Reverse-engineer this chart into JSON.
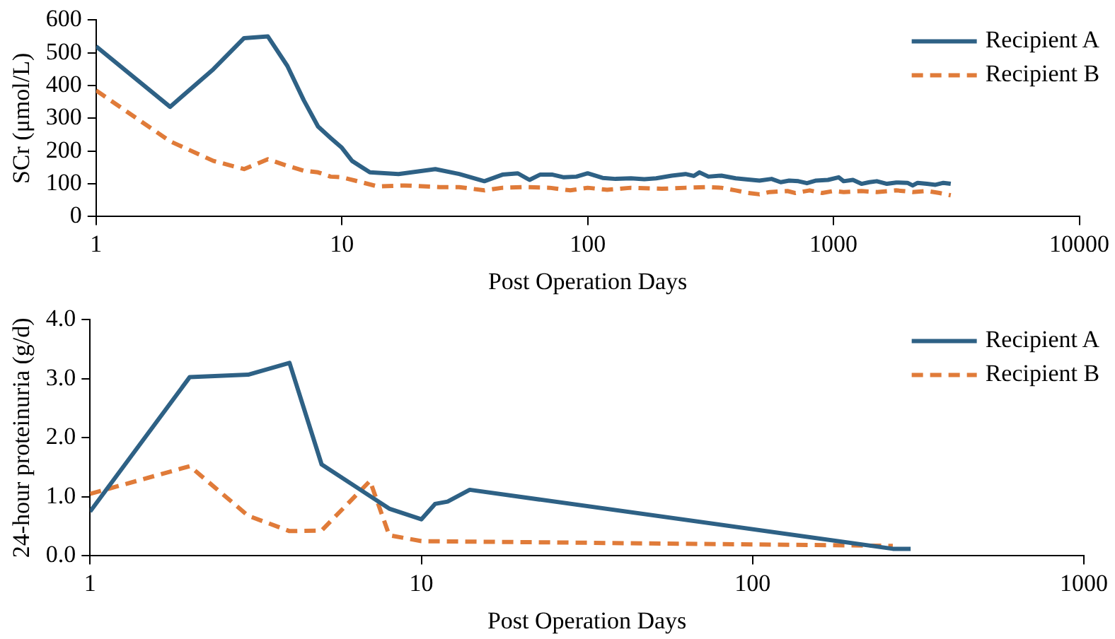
{
  "chart_data": [
    {
      "type": "line",
      "xlabel": "Post Operation Days",
      "ylabel": "SCr (μmol/L)",
      "log": "x",
      "grid": false,
      "legend": "top right",
      "marker": "none",
      "xlim": [
        1,
        10000
      ],
      "xticks": [
        1,
        10,
        100,
        1000,
        10000
      ],
      "ylim": [
        0,
        600
      ],
      "yticks": [
        0,
        100,
        200,
        300,
        400,
        500,
        600
      ],
      "series": [
        {
          "name": "Recipient A",
          "color": "#2e6185",
          "line_style": "solid",
          "x": [
            1,
            2,
            3,
            4,
            5,
            6,
            7,
            8,
            9,
            10,
            11,
            13,
            17,
            24,
            30,
            38,
            45,
            52,
            58,
            64,
            72,
            80,
            90,
            100,
            115,
            130,
            150,
            170,
            190,
            220,
            250,
            270,
            285,
            310,
            350,
            400,
            450,
            500,
            560,
            610,
            660,
            720,
            780,
            850,
            950,
            1050,
            1100,
            1200,
            1300,
            1400,
            1500,
            1650,
            1800,
            2000,
            2100,
            2200,
            2400,
            2600,
            2800,
            3000
          ],
          "values": [
            520,
            335,
            450,
            545,
            550,
            460,
            355,
            275,
            240,
            210,
            170,
            135,
            130,
            145,
            130,
            108,
            128,
            132,
            112,
            128,
            128,
            120,
            122,
            132,
            118,
            115,
            117,
            114,
            117,
            125,
            130,
            124,
            135,
            122,
            125,
            117,
            113,
            110,
            115,
            105,
            110,
            108,
            102,
            110,
            112,
            120,
            108,
            112,
            100,
            105,
            108,
            100,
            104,
            103,
            95,
            103,
            100,
            97,
            103,
            100
          ]
        },
        {
          "name": "Recipient B",
          "color": "#e07b39",
          "line_style": "dashed",
          "x": [
            1,
            2,
            3,
            4,
            5,
            6,
            7,
            8,
            9,
            10,
            12,
            14,
            18,
            25,
            30,
            38,
            45,
            55,
            70,
            85,
            100,
            120,
            150,
            200,
            250,
            300,
            350,
            400,
            450,
            500,
            550,
            650,
            700,
            800,
            900,
            1000,
            1100,
            1300,
            1500,
            1800,
            2100,
            2400,
            2700,
            3000
          ],
          "values": [
            385,
            230,
            170,
            145,
            175,
            155,
            140,
            135,
            122,
            120,
            105,
            92,
            95,
            90,
            90,
            80,
            88,
            90,
            88,
            80,
            88,
            82,
            88,
            85,
            88,
            90,
            88,
            80,
            72,
            68,
            75,
            78,
            72,
            80,
            72,
            78,
            75,
            78,
            75,
            80,
            75,
            78,
            72,
            65
          ]
        }
      ]
    },
    {
      "type": "line",
      "xlabel": "Post Operation Days",
      "ylabel": "24-hour proteinuria (g/d)",
      "log": "x",
      "grid": false,
      "legend": "top right",
      "marker": "none",
      "xlim": [
        1,
        1000
      ],
      "xticks": [
        1,
        10,
        100,
        1000
      ],
      "ylim": [
        0,
        4
      ],
      "yticks": [
        {
          "value": 0,
          "label": "0.0"
        },
        {
          "value": 1,
          "label": "1.0"
        },
        {
          "value": 2,
          "label": "2.0"
        },
        {
          "value": 3,
          "label": "3.0"
        },
        {
          "value": 4,
          "label": "4.0"
        }
      ],
      "series": [
        {
          "name": "Recipient A",
          "color": "#2e6185",
          "line_style": "solid",
          "x": [
            1,
            2,
            3,
            4,
            5,
            8,
            10,
            11,
            12,
            14,
            265,
            300
          ],
          "values": [
            0.75,
            3.03,
            3.07,
            3.27,
            1.55,
            0.8,
            0.62,
            0.88,
            0.92,
            1.12,
            0.12,
            0.12
          ]
        },
        {
          "name": "Recipient B",
          "color": "#e07b39",
          "line_style": "dashed",
          "x": [
            1,
            2,
            3,
            4,
            5,
            7,
            8,
            10,
            265
          ],
          "values": [
            1.05,
            1.52,
            0.68,
            0.42,
            0.43,
            1.27,
            0.35,
            0.25,
            0.17
          ]
        }
      ]
    }
  ]
}
